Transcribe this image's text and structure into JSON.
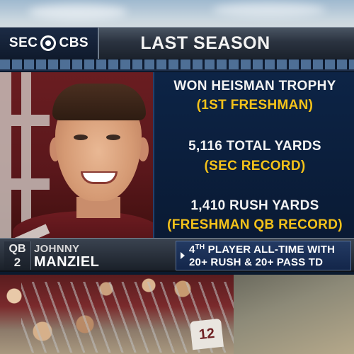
{
  "network": {
    "logo_left": "SEC",
    "logo_right": "CBS"
  },
  "header": {
    "title": "LAST SEASON"
  },
  "stats": [
    {
      "main": "WON HEISMAN TROPHY",
      "sub": "(1ST FRESHMAN)"
    },
    {
      "main": "5,116 TOTAL YARDS",
      "sub": "(SEC RECORD)"
    },
    {
      "main": "1,410 RUSH YARDS",
      "sub": "(FRESHMAN QB RECORD)"
    }
  ],
  "player": {
    "position": "QB",
    "number": "2",
    "first_name": "JOHNNY",
    "last_name": "MANZIEL"
  },
  "fact": {
    "ordinal_number": "4",
    "ordinal_suffix": "TH",
    "line1_rest": " PLAYER ALL-TIME WITH",
    "line2": "20+ RUSH & 20+ PASS TD"
  },
  "background": {
    "jersey_number": "12"
  },
  "colors": {
    "accent_yellow": "#f4c21a",
    "stats_panel": "#0d2446",
    "team_maroon": "#6e1c21"
  }
}
